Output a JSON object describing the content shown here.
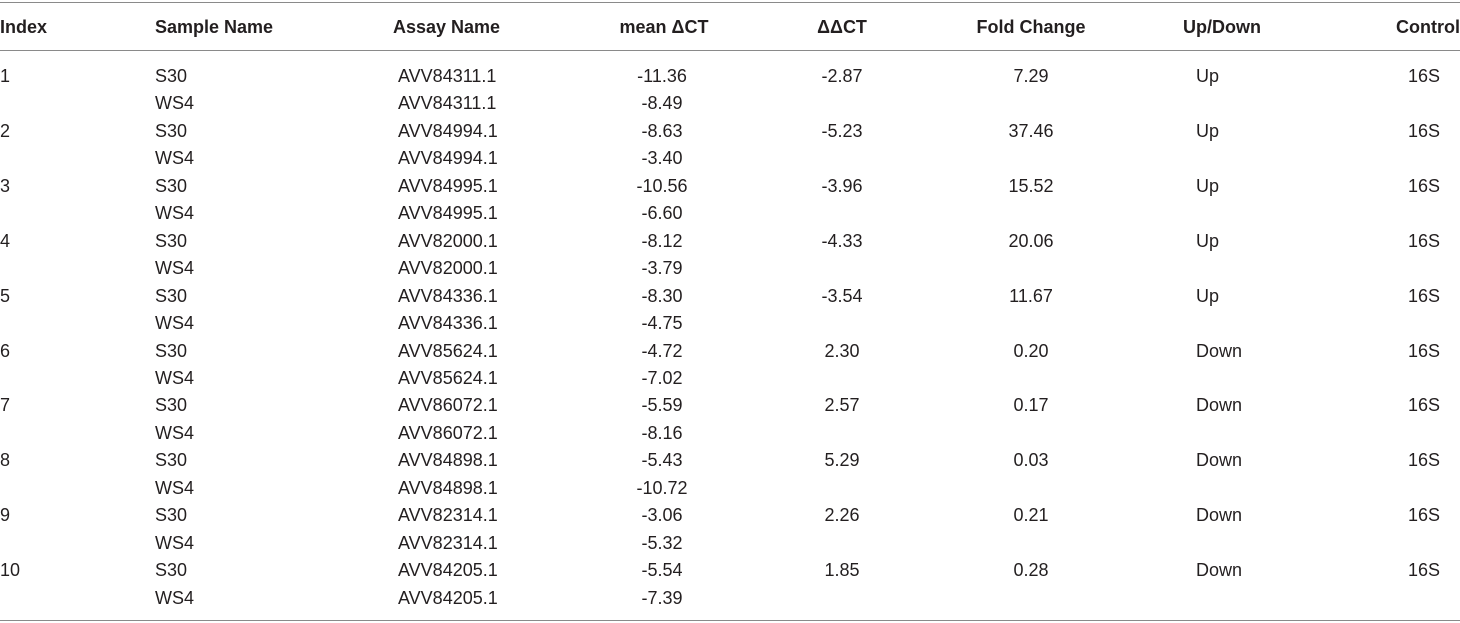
{
  "table": {
    "columns": [
      "Index",
      "Sample Name",
      "Assay Name",
      "mean ΔCT",
      "ΔΔCT",
      "Fold Change",
      "Up/Down",
      "Control"
    ],
    "groups": [
      {
        "index": "1",
        "samples": [
          {
            "sample": "S30",
            "assay": "AVV84311.1",
            "mean": "-11.36"
          },
          {
            "sample": "WS4",
            "assay": "AVV84311.1",
            "mean": "-8.49"
          }
        ],
        "ddct": "-2.87",
        "fold": "7.29",
        "direction": "Up",
        "control": "16S"
      },
      {
        "index": "2",
        "samples": [
          {
            "sample": "S30",
            "assay": "AVV84994.1",
            "mean": "-8.63"
          },
          {
            "sample": "WS4",
            "assay": "AVV84994.1",
            "mean": "-3.40"
          }
        ],
        "ddct": "-5.23",
        "fold": "37.46",
        "direction": "Up",
        "control": "16S"
      },
      {
        "index": "3",
        "samples": [
          {
            "sample": "S30",
            "assay": "AVV84995.1",
            "mean": "-10.56"
          },
          {
            "sample": "WS4",
            "assay": "AVV84995.1",
            "mean": "-6.60"
          }
        ],
        "ddct": "-3.96",
        "fold": "15.52",
        "direction": "Up",
        "control": "16S"
      },
      {
        "index": "4",
        "samples": [
          {
            "sample": "S30",
            "assay": "AVV82000.1",
            "mean": "-8.12"
          },
          {
            "sample": "WS4",
            "assay": "AVV82000.1",
            "mean": "-3.79"
          }
        ],
        "ddct": "-4.33",
        "fold": "20.06",
        "direction": "Up",
        "control": "16S"
      },
      {
        "index": "5",
        "samples": [
          {
            "sample": "S30",
            "assay": "AVV84336.1",
            "mean": "-8.30"
          },
          {
            "sample": "WS4",
            "assay": "AVV84336.1",
            "mean": "-4.75"
          }
        ],
        "ddct": "-3.54",
        "fold": "11.67",
        "direction": "Up",
        "control": "16S"
      },
      {
        "index": "6",
        "samples": [
          {
            "sample": "S30",
            "assay": "AVV85624.1",
            "mean": "-4.72"
          },
          {
            "sample": "WS4",
            "assay": "AVV85624.1",
            "mean": "-7.02"
          }
        ],
        "ddct": "2.30",
        "fold": "0.20",
        "direction": "Down",
        "control": "16S"
      },
      {
        "index": "7",
        "samples": [
          {
            "sample": "S30",
            "assay": "AVV86072.1",
            "mean": "-5.59"
          },
          {
            "sample": "WS4",
            "assay": "AVV86072.1",
            "mean": "-8.16"
          }
        ],
        "ddct": "2.57",
        "fold": "0.17",
        "direction": "Down",
        "control": "16S"
      },
      {
        "index": "8",
        "samples": [
          {
            "sample": "S30",
            "assay": "AVV84898.1",
            "mean": "-5.43"
          },
          {
            "sample": "WS4",
            "assay": "AVV84898.1",
            "mean": "-10.72"
          }
        ],
        "ddct": "5.29",
        "fold": "0.03",
        "direction": "Down",
        "control": "16S"
      },
      {
        "index": "9",
        "samples": [
          {
            "sample": "S30",
            "assay": "AVV82314.1",
            "mean": "-3.06"
          },
          {
            "sample": "WS4",
            "assay": "AVV82314.1",
            "mean": "-5.32"
          }
        ],
        "ddct": "2.26",
        "fold": "0.21",
        "direction": "Down",
        "control": "16S"
      },
      {
        "index": "10",
        "samples": [
          {
            "sample": "S30",
            "assay": "AVV84205.1",
            "mean": "-5.54"
          },
          {
            "sample": "WS4",
            "assay": "AVV84205.1",
            "mean": "-7.39"
          }
        ],
        "ddct": "1.85",
        "fold": "0.28",
        "direction": "Down",
        "control": "16S"
      }
    ]
  }
}
